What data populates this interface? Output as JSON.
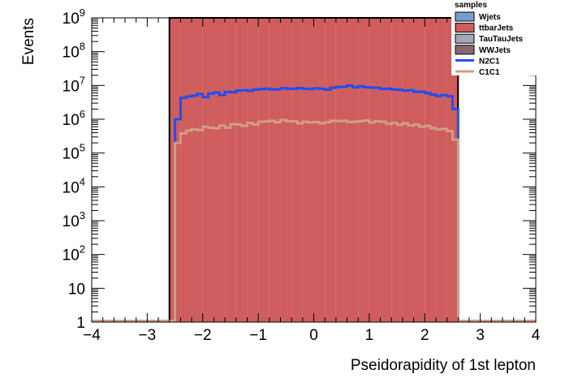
{
  "chart_data": {
    "type": "stacked histogram",
    "xlabel": "Pseidorapidity of 1st lepton",
    "ylabel": "Events",
    "xlim": [
      -4,
      4
    ],
    "ylim": [
      1,
      1000000000
    ],
    "yscale": "log",
    "x_ticks": [
      "−4",
      "−3",
      "−2",
      "−1",
      "0",
      "1",
      "2",
      "3",
      "4"
    ],
    "y_ticks": [
      {
        "label": "1",
        "value": 1
      },
      {
        "label": "10",
        "value": 10
      },
      {
        "label": "10",
        "sup": "2",
        "value": 100
      },
      {
        "label": "10",
        "sup": "3",
        "value": 1000
      },
      {
        "label": "10",
        "sup": "4",
        "value": 10000
      },
      {
        "label": "10",
        "sup": "5",
        "value": 100000
      },
      {
        "label": "10",
        "sup": "6",
        "value": 1000000
      },
      {
        "label": "10",
        "sup": "7",
        "value": 10000000
      },
      {
        "label": "10",
        "sup": "8",
        "value": 100000000
      },
      {
        "label": "10",
        "sup": "9",
        "value": 1000000000
      }
    ],
    "legend": {
      "title": "samples",
      "position": "top-right",
      "entries": [
        {
          "name": "Wjets",
          "kind": "fill",
          "color": "#7a9ccc"
        },
        {
          "name": "ttbarJets",
          "kind": "fill",
          "color": "#d05d5d"
        },
        {
          "name": "TauTauJets",
          "kind": "fill",
          "color": "#a6a6b8"
        },
        {
          "name": "WWJets",
          "kind": "fill",
          "color": "#8a6670"
        },
        {
          "name": "N2C1",
          "kind": "line",
          "color": "#1f4ef2"
        },
        {
          "name": "C1C1",
          "kind": "line",
          "color": "#cf9e82"
        }
      ]
    },
    "bin_edges": [
      -2.6,
      -2.4,
      -2.2,
      -2.0,
      -1.8,
      -1.6,
      -1.4,
      -1.2,
      -1.0,
      -0.8,
      -0.6,
      -0.4,
      -0.2,
      0.0,
      0.2,
      0.4,
      0.6,
      0.8,
      1.0,
      1.2,
      1.4,
      1.6,
      1.8,
      2.0,
      2.2,
      2.4,
      2.6
    ],
    "stack": [
      {
        "name": "ttbarJets",
        "color": "#d05d5d",
        "values": [
          1000000000,
          1000000000,
          1000000000,
          1000000000,
          1000000000,
          1000000000,
          1000000000,
          1000000000,
          1000000000,
          1000000000,
          1000000000,
          1000000000,
          1000000000,
          1000000000,
          1000000000,
          1000000000,
          1000000000,
          1000000000,
          1000000000,
          1000000000,
          1000000000,
          1000000000,
          1000000000,
          1000000000,
          1000000000,
          1000000000
        ]
      },
      {
        "name": "Wjets",
        "color": "#7a9ccc",
        "values": [
          500000000,
          0,
          0,
          0,
          0,
          0,
          0,
          0,
          0,
          0,
          0,
          0,
          0,
          0,
          0,
          0,
          0,
          0,
          0,
          0,
          0,
          0,
          0,
          0,
          0,
          500000000
        ]
      }
    ],
    "overlays": [
      {
        "name": "N2C1",
        "color": "#1f4ef2",
        "x": [
          -4.0,
          -3.8,
          -3.6,
          -3.4,
          -3.2,
          -3.0,
          -2.8,
          -2.6,
          -2.5,
          -2.4,
          -2.3,
          -2.2,
          -2.1,
          -2.0,
          -1.9,
          -1.8,
          -1.7,
          -1.6,
          -1.5,
          -1.4,
          -1.3,
          -1.2,
          -1.1,
          -1.0,
          -0.9,
          -0.8,
          -0.7,
          -0.6,
          -0.5,
          -0.4,
          -0.3,
          -0.2,
          -0.1,
          0.0,
          0.1,
          0.2,
          0.3,
          0.4,
          0.5,
          0.6,
          0.7,
          0.8,
          0.9,
          1.0,
          1.1,
          1.2,
          1.3,
          1.4,
          1.5,
          1.6,
          1.7,
          1.8,
          1.9,
          2.0,
          2.1,
          2.2,
          2.3,
          2.4,
          2.5,
          2.6,
          2.8,
          3.0,
          3.2,
          3.4,
          3.6,
          3.8,
          4.0
        ],
        "values": [
          1,
          1,
          1,
          1,
          1,
          1,
          1,
          1,
          1000000,
          4300000,
          4700000,
          5000000,
          5600000,
          4500000,
          5800000,
          6200000,
          5200000,
          6500000,
          6300000,
          7000000,
          7200000,
          6900000,
          7500000,
          7800000,
          8000000,
          7700000,
          7600000,
          8300000,
          8100000,
          7900000,
          8400000,
          8000000,
          7800000,
          8200000,
          8000000,
          7500000,
          8600000,
          9000000,
          9200000,
          10000000,
          8800000,
          9600000,
          8900000,
          8700000,
          8500000,
          7900000,
          8000000,
          7600000,
          7400000,
          7000000,
          7200000,
          6400000,
          6600000,
          6000000,
          5400000,
          4900000,
          5200000,
          4800000,
          2000000,
          1,
          1,
          1,
          1,
          1,
          1,
          1,
          1
        ]
      },
      {
        "name": "C1C1",
        "color": "#cf9e82",
        "x": [
          -4.0,
          -3.8,
          -3.6,
          -3.4,
          -3.2,
          -3.0,
          -2.8,
          -2.6,
          -2.5,
          -2.4,
          -2.3,
          -2.2,
          -2.1,
          -2.0,
          -1.9,
          -1.8,
          -1.7,
          -1.6,
          -1.5,
          -1.4,
          -1.3,
          -1.2,
          -1.1,
          -1.0,
          -0.9,
          -0.8,
          -0.7,
          -0.6,
          -0.5,
          -0.4,
          -0.3,
          -0.2,
          -0.1,
          0.0,
          0.1,
          0.2,
          0.3,
          0.4,
          0.5,
          0.6,
          0.7,
          0.8,
          0.9,
          1.0,
          1.1,
          1.2,
          1.3,
          1.4,
          1.5,
          1.6,
          1.7,
          1.8,
          1.9,
          2.0,
          2.1,
          2.2,
          2.3,
          2.4,
          2.5,
          2.6,
          2.8,
          3.0,
          3.2,
          3.4,
          3.6,
          3.8,
          4.0
        ],
        "values": [
          1,
          1,
          1,
          1,
          1,
          1,
          1,
          1,
          200000,
          380000,
          460000,
          500000,
          480000,
          600000,
          560000,
          540000,
          650000,
          560000,
          720000,
          700000,
          640000,
          780000,
          700000,
          850000,
          860000,
          900000,
          820000,
          950000,
          880000,
          870000,
          760000,
          840000,
          800000,
          830000,
          760000,
          820000,
          900000,
          880000,
          910000,
          830000,
          850000,
          870000,
          920000,
          800000,
          880000,
          840000,
          730000,
          780000,
          690000,
          760000,
          650000,
          700000,
          600000,
          640000,
          550000,
          500000,
          520000,
          450000,
          250000,
          1,
          1,
          1,
          1,
          1,
          1,
          1,
          1
        ]
      }
    ]
  }
}
